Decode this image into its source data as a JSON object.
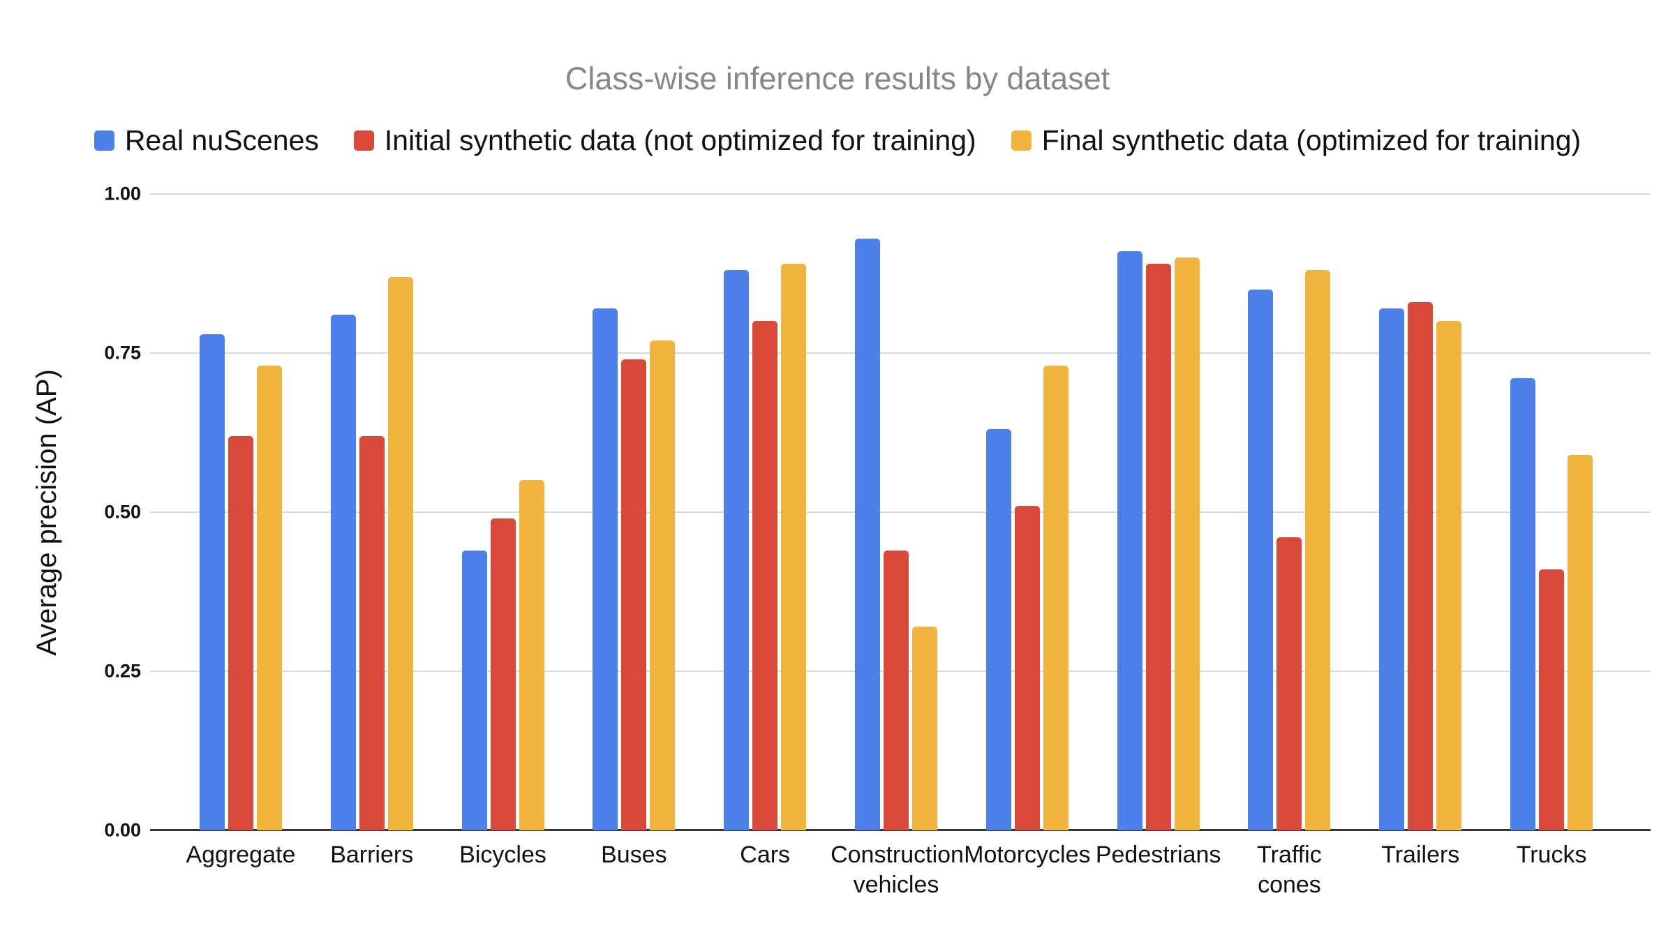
{
  "chart_data": {
    "type": "bar",
    "title": "Class-wise inference results by dataset",
    "ylabel": "Average precision (AP)",
    "xlabel": "",
    "categories": [
      "Aggregate",
      "Barriers",
      "Bicycles",
      "Buses",
      "Cars",
      "Construction vehicles",
      "Motorcycles",
      "Pedestrians",
      "Traffic cones",
      "Trailers",
      "Trucks"
    ],
    "series": [
      {
        "name": "Real nuScenes",
        "color": "#4E80EA",
        "values": [
          0.78,
          0.81,
          0.44,
          0.82,
          0.88,
          0.93,
          0.63,
          0.91,
          0.85,
          0.82,
          0.71
        ]
      },
      {
        "name": "Initial synthetic data (not optimized for training)",
        "color": "#D9493B",
        "values": [
          0.62,
          0.62,
          0.49,
          0.74,
          0.8,
          0.44,
          0.51,
          0.89,
          0.46,
          0.83,
          0.41
        ]
      },
      {
        "name": "Final synthetic data (optimized for training)",
        "color": "#F1B53F",
        "values": [
          0.73,
          0.87,
          0.55,
          0.77,
          0.89,
          0.32,
          0.73,
          0.9,
          0.88,
          0.8,
          0.59
        ]
      }
    ],
    "ylim": [
      0,
      1
    ],
    "yticks": [
      "0.00",
      "0.25",
      "0.50",
      "0.75",
      "1.00"
    ],
    "grid": true,
    "legend_position": "top",
    "colors": {
      "title_text": "#878787",
      "body_text": "#111111",
      "gridline": "#d9d9d9",
      "axis_line": "#333333",
      "background": "#ffffff"
    }
  }
}
